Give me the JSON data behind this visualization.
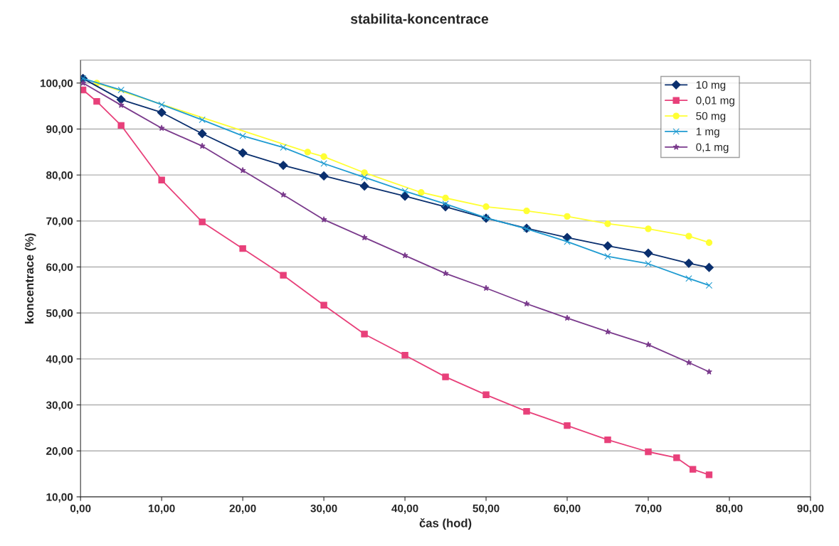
{
  "chart_data": {
    "type": "line",
    "title": "stabilita-koncentrace",
    "xlabel": "čas (hod)",
    "ylabel": "koncentrace (%)",
    "xlim": [
      0,
      90
    ],
    "xticks": [
      {
        "value": 0,
        "label": "0,00"
      },
      {
        "value": 10,
        "label": "10,00"
      },
      {
        "value": 20,
        "label": "20,00"
      },
      {
        "value": 30,
        "label": "30,00"
      },
      {
        "value": 40,
        "label": "40,00"
      },
      {
        "value": 50,
        "label": "50,00"
      },
      {
        "value": 60,
        "label": "60,00"
      },
      {
        "value": 70,
        "label": "70,00"
      },
      {
        "value": 80,
        "label": "80,00"
      },
      {
        "value": 90,
        "label": "90,00"
      }
    ],
    "ylim": [
      10,
      105
    ],
    "yticks": [
      {
        "value": 10,
        "label": "10,00"
      },
      {
        "value": 20,
        "label": "20,00"
      },
      {
        "value": 30,
        "label": "30,00"
      },
      {
        "value": 40,
        "label": "40,00"
      },
      {
        "value": 50,
        "label": "50,00"
      },
      {
        "value": 60,
        "label": "60,00"
      },
      {
        "value": 70,
        "label": "70,00"
      },
      {
        "value": 80,
        "label": "80,00"
      },
      {
        "value": 90,
        "label": "90,00"
      },
      {
        "value": 100,
        "label": "100,00"
      }
    ],
    "grid": "y",
    "legend": "top right",
    "line_style": "solid",
    "series": [
      {
        "name": "50 mg",
        "color": "#ffff33",
        "marker": "circle",
        "x": [
          2,
          28,
          30,
          35,
          42,
          45,
          50,
          55,
          60,
          65,
          70,
          75,
          77.5
        ],
        "values": [
          100,
          85,
          84,
          80.5,
          76.2,
          75,
          73.1,
          72.2,
          71,
          69.4,
          68.3,
          66.7,
          65.3
        ]
      },
      {
        "name": "10 mg",
        "color": "#0a2f6e",
        "marker": "diamond",
        "x": [
          0.3,
          5,
          10,
          15,
          20,
          25,
          30,
          35,
          40,
          45,
          50,
          55,
          60,
          65,
          70,
          75,
          77.5
        ],
        "values": [
          101,
          96.4,
          93.6,
          89,
          84.8,
          82.1,
          79.8,
          77.6,
          75.4,
          73.1,
          70.6,
          68.4,
          66.4,
          64.6,
          63,
          60.8,
          59.9
        ]
      },
      {
        "name": "0,01 mg",
        "color": "#e8407a",
        "marker": "square",
        "x": [
          0.3,
          2,
          5,
          10,
          15,
          20,
          25,
          30,
          35,
          40,
          45,
          50,
          55,
          60,
          65,
          70,
          73.5,
          75.5,
          77.5
        ],
        "values": [
          98.5,
          96,
          90.8,
          78.9,
          69.8,
          64,
          58.2,
          51.7,
          45.4,
          40.8,
          36.1,
          32.2,
          28.6,
          25.5,
          22.4,
          19.8,
          18.5,
          16,
          14.8
        ]
      },
      {
        "name": "1 mg",
        "color": "#1f9bd1",
        "marker": "cross",
        "x": [
          0.3,
          5,
          10,
          15,
          20,
          25,
          30,
          35,
          40,
          45,
          50,
          55,
          60,
          65,
          70,
          75,
          77.5
        ],
        "values": [
          101,
          98.5,
          95.3,
          92,
          88.5,
          86,
          82.5,
          79.5,
          76.5,
          73.7,
          70.7,
          68.3,
          65.5,
          62.3,
          60.7,
          57.5,
          56
        ]
      },
      {
        "name": "0,1 mg",
        "color": "#7a3a8c",
        "marker": "star",
        "x": [
          0.3,
          5,
          10,
          15,
          20,
          25,
          30,
          35,
          40,
          45,
          50,
          55,
          60,
          65,
          70,
          75,
          77.5
        ],
        "values": [
          100,
          95.2,
          90.2,
          86.3,
          81,
          75.7,
          70.3,
          66.4,
          62.5,
          58.6,
          55.4,
          52,
          48.9,
          45.9,
          43.1,
          39.2,
          37.2
        ]
      }
    ]
  }
}
